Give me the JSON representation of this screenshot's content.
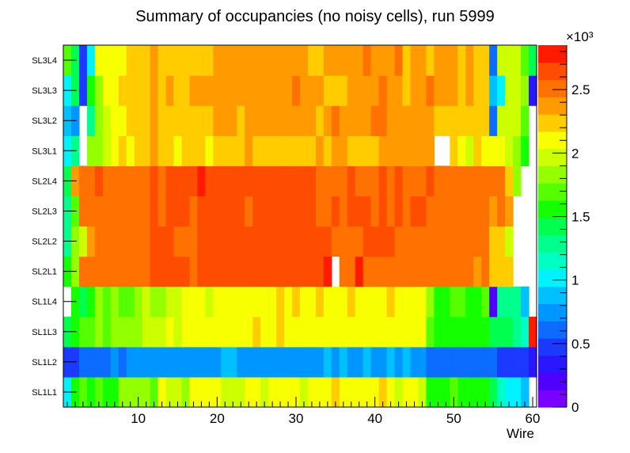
{
  "chart_data": {
    "type": "heatmap",
    "title": "Summary of occupancies (no noisy cells), run 5999",
    "xlabel": "Wire",
    "ylabel": "",
    "xlim": [
      0.5,
      60.5
    ],
    "x_ticks": [
      "10",
      "20",
      "30",
      "40",
      "50",
      "60"
    ],
    "zlim": [
      0,
      2850
    ],
    "z_multiplier_label": "×10³",
    "z_ticks": [
      "0",
      "0.5",
      "1",
      "1.5",
      "2",
      "2.5"
    ],
    "rows": [
      "SL1L1",
      "SL1L2",
      "SL1L3",
      "SL1L4",
      "SL2L1",
      "SL2L2",
      "SL2L3",
      "SL2L4",
      "SL3L1",
      "SL3L2",
      "SL3L3",
      "SL3L4"
    ],
    "palette": [
      "#7a00ff",
      "#4f00ff",
      "#2a16ff",
      "#1c39ff",
      "#0b6cff",
      "#0096ff",
      "#00c0ff",
      "#00f2ff",
      "#00ffc2",
      "#00ff8c",
      "#00ff4e",
      "#14ff00",
      "#55ff00",
      "#94ff00",
      "#ccff00",
      "#f7ff00",
      "#ffcc00",
      "#ff9b00",
      "#ff7100",
      "#ff4d00",
      "#ff1a00"
    ],
    "cell_levels": {
      "SL1L1": [
        7,
        11,
        12,
        11,
        12,
        11,
        11,
        13,
        13,
        13,
        13,
        12,
        15,
        14,
        14,
        13,
        15,
        15,
        15,
        15,
        14,
        14,
        14,
        15,
        15,
        14,
        15,
        15,
        15,
        15,
        14,
        15,
        15,
        15,
        16,
        15,
        15,
        15,
        15,
        15,
        16,
        15,
        14,
        15,
        15,
        14,
        11,
        11,
        11,
        12,
        11,
        11,
        11,
        11,
        10,
        8,
        7,
        7,
        6,
        null
      ],
      "SL1L2": [
        3,
        3,
        4,
        4,
        4,
        4,
        5,
        4,
        5,
        5,
        5,
        5,
        5,
        5,
        5,
        5,
        5,
        5,
        5,
        5,
        6,
        6,
        5,
        5,
        5,
        5,
        5,
        5,
        5,
        5,
        5,
        5,
        5,
        6,
        5,
        6,
        5,
        5,
        6,
        5,
        5,
        6,
        5,
        6,
        5,
        5,
        4,
        4,
        4,
        4,
        4,
        4,
        4,
        4,
        4,
        3,
        3,
        3,
        3,
        2
      ],
      "SL1L3": [
        10,
        11,
        12,
        12,
        13,
        12,
        13,
        13,
        13,
        13,
        14,
        14,
        14,
        15,
        14,
        15,
        15,
        15,
        15,
        15,
        15,
        15,
        15,
        15,
        16,
        15,
        15,
        16,
        15,
        15,
        15,
        15,
        15,
        15,
        15,
        15,
        15,
        15,
        15,
        15,
        15,
        15,
        15,
        15,
        15,
        15,
        12,
        11,
        11,
        11,
        11,
        11,
        11,
        11,
        10,
        10,
        10,
        9,
        8,
        20
      ],
      "SL1L4": [
        null,
        11,
        10,
        11,
        13,
        12,
        13,
        12,
        12,
        13,
        14,
        13,
        13,
        14,
        14,
        15,
        15,
        15,
        14,
        15,
        15,
        15,
        15,
        15,
        15,
        15,
        15,
        16,
        15,
        16,
        15,
        15,
        16,
        15,
        15,
        15,
        16,
        15,
        15,
        15,
        15,
        16,
        15,
        15,
        15,
        15,
        13,
        11,
        11,
        12,
        12,
        11,
        11,
        12,
        1,
        9,
        9,
        9,
        6,
        null
      ],
      "SL2L1": [
        11,
        13,
        18,
        18,
        18,
        18,
        18,
        18,
        18,
        18,
        18,
        19,
        19,
        19,
        19,
        19,
        18,
        19,
        19,
        19,
        19,
        19,
        19,
        19,
        19,
        19,
        19,
        19,
        19,
        19,
        19,
        19,
        19,
        20,
        null,
        18,
        18,
        20,
        18,
        18,
        18,
        18,
        18,
        18,
        18,
        18,
        18,
        18,
        18,
        18,
        18,
        18,
        17,
        18,
        16,
        16,
        16,
        null,
        null,
        null
      ],
      "SL2L2": [
        9,
        13,
        14,
        17,
        18,
        18,
        18,
        18,
        18,
        18,
        18,
        19,
        19,
        19,
        18,
        18,
        18,
        19,
        19,
        19,
        19,
        19,
        19,
        19,
        19,
        19,
        19,
        19,
        19,
        19,
        19,
        19,
        19,
        19,
        18,
        18,
        18,
        18,
        19,
        19,
        19,
        19,
        18,
        18,
        18,
        18,
        18,
        18,
        18,
        18,
        18,
        18,
        18,
        18,
        16,
        16,
        14,
        null,
        null,
        null
      ],
      "SL2L3": [
        9,
        12,
        18,
        18,
        18,
        18,
        18,
        18,
        18,
        18,
        18,
        19,
        18,
        19,
        19,
        19,
        18,
        19,
        19,
        19,
        19,
        19,
        19,
        18,
        19,
        19,
        19,
        19,
        19,
        19,
        19,
        19,
        18,
        18,
        19,
        18,
        19,
        19,
        19,
        18,
        19,
        18,
        19,
        18,
        19,
        19,
        18,
        18,
        18,
        18,
        18,
        18,
        18,
        18,
        17,
        18,
        17,
        null,
        null,
        null
      ],
      "SL2L4": [
        10,
        17,
        18,
        18,
        19,
        18,
        18,
        18,
        18,
        18,
        18,
        19,
        18,
        19,
        19,
        19,
        19,
        20,
        19,
        19,
        19,
        19,
        19,
        19,
        19,
        19,
        19,
        19,
        19,
        19,
        19,
        19,
        18,
        18,
        18,
        18,
        19,
        18,
        18,
        18,
        19,
        18,
        19,
        18,
        18,
        18,
        19,
        18,
        18,
        18,
        18,
        18,
        18,
        18,
        18,
        18,
        16,
        13,
        null,
        null
      ],
      "SL3L1": [
        7,
        9,
        null,
        13,
        13,
        14,
        15,
        16,
        15,
        16,
        16,
        17,
        16,
        16,
        15,
        16,
        16,
        16,
        15,
        16,
        16,
        16,
        16,
        17,
        16,
        16,
        16,
        16,
        16,
        16,
        16,
        16,
        17,
        16,
        17,
        17,
        16,
        16,
        16,
        16,
        17,
        17,
        17,
        17,
        17,
        17,
        17,
        null,
        null,
        16,
        15,
        14,
        16,
        15,
        15,
        15,
        14,
        13,
        11,
        null
      ],
      "SL3L2": [
        6,
        5,
        null,
        9,
        13,
        14,
        15,
        15,
        16,
        16,
        16,
        17,
        16,
        16,
        16,
        16,
        16,
        16,
        16,
        17,
        17,
        17,
        16,
        17,
        17,
        17,
        17,
        17,
        17,
        17,
        17,
        17,
        16,
        17,
        18,
        17,
        17,
        17,
        17,
        18,
        18,
        17,
        17,
        17,
        17,
        17,
        17,
        16,
        16,
        16,
        16,
        16,
        16,
        16,
        4,
        14,
        14,
        14,
        12,
        null
      ],
      "SL3L3": [
        7,
        10,
        3,
        11,
        13,
        15,
        15,
        16,
        16,
        16,
        16,
        17,
        16,
        17,
        16,
        16,
        17,
        17,
        17,
        17,
        17,
        17,
        17,
        17,
        17,
        17,
        17,
        17,
        17,
        18,
        17,
        17,
        17,
        16,
        16,
        16,
        17,
        17,
        17,
        17,
        18,
        17,
        17,
        16,
        17,
        17,
        18,
        17,
        17,
        17,
        16,
        17,
        16,
        16,
        6,
        7,
        14,
        14,
        13,
        2
      ],
      "SL3L4": [
        12,
        10,
        3,
        7,
        15,
        15,
        15,
        15,
        16,
        16,
        16,
        17,
        16,
        16,
        16,
        16,
        16,
        16,
        16,
        17,
        17,
        17,
        17,
        17,
        17,
        17,
        17,
        17,
        17,
        17,
        17,
        16,
        16,
        17,
        17,
        17,
        17,
        17,
        18,
        17,
        17,
        17,
        18,
        16,
        17,
        17,
        16,
        17,
        17,
        17,
        16,
        17,
        16,
        16,
        4,
        14,
        14,
        14,
        12,
        10
      ]
    }
  }
}
